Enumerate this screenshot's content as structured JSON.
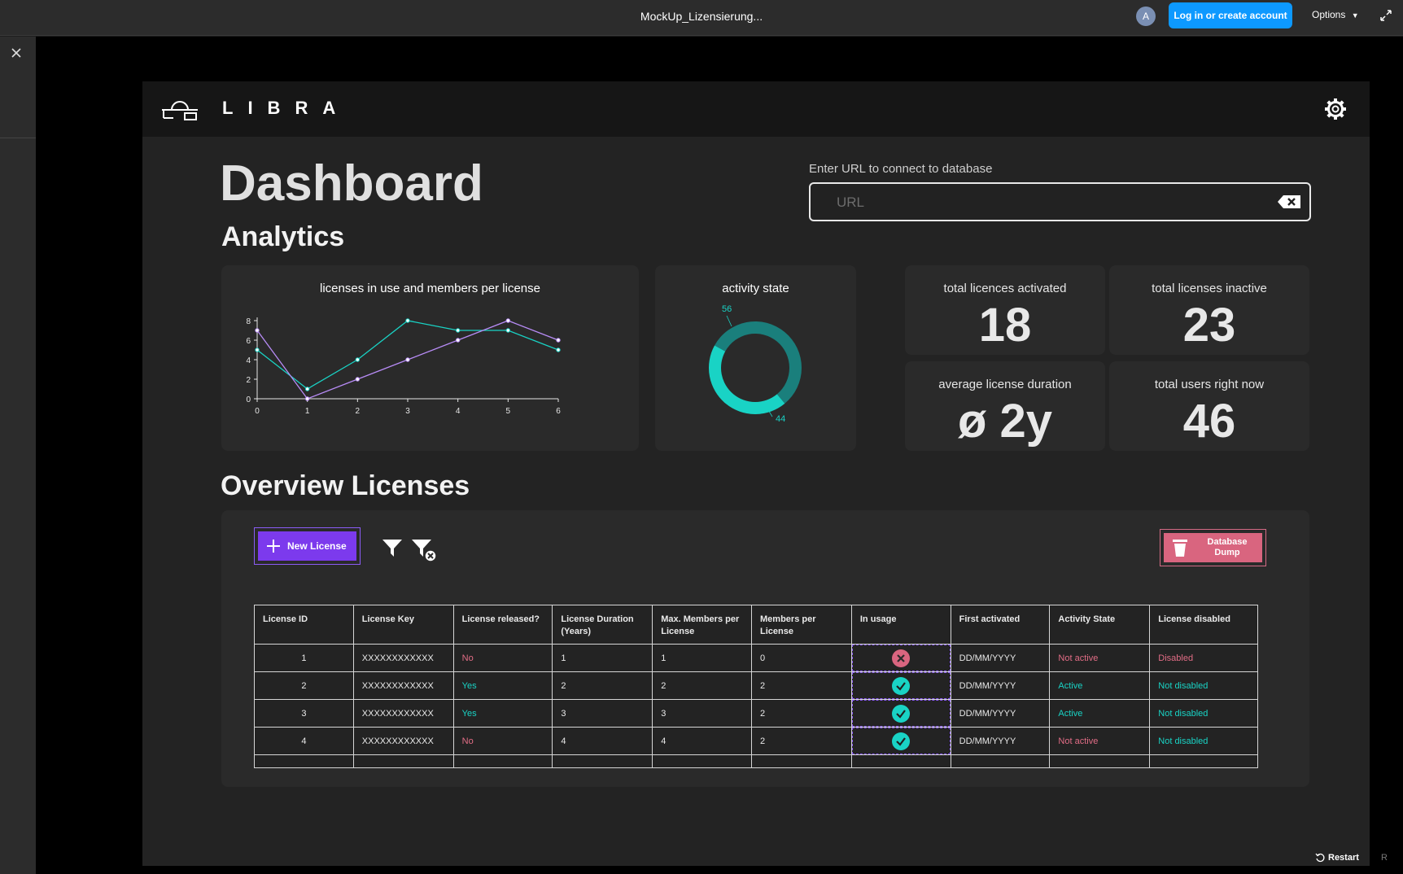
{
  "topbar": {
    "file_title": "MockUp_Lizensierung...",
    "avatar_initial": "A",
    "login_label": "Log in or create account",
    "options_label": "Options"
  },
  "app": {
    "logo_text": "LIBRA",
    "page_title": "Dashboard",
    "analytics_heading": "Analytics",
    "overview_heading": "Overview Licenses",
    "url": {
      "label": "Enter URL to connect to database",
      "placeholder": "URL",
      "value": ""
    }
  },
  "line_chart_title": "licenses in use and members per license",
  "donut_chart_title": "activity state",
  "stats": [
    {
      "label": "total licences activated",
      "value": "18"
    },
    {
      "label": "total licenses inactive",
      "value": "23"
    },
    {
      "label": "average license duration",
      "value": "ø 2y"
    },
    {
      "label": "total users right now",
      "value": "46"
    }
  ],
  "chart_data": [
    {
      "type": "line",
      "title": "licenses in use and members per license",
      "x": [
        0,
        1,
        2,
        3,
        4,
        5,
        6
      ],
      "xlim": [
        0,
        6
      ],
      "ylim": [
        0,
        8
      ],
      "yticks": [
        0,
        2,
        4,
        6,
        8
      ],
      "grid": false,
      "series": [
        {
          "values": [
            5,
            1,
            4,
            8,
            7,
            7,
            5
          ],
          "color": "#19d3c5"
        },
        {
          "values": [
            7,
            0,
            2,
            4,
            6,
            8,
            6
          ],
          "color": "#b88cf7"
        }
      ]
    },
    {
      "type": "pie",
      "title": "activity state",
      "donut": true,
      "categories": [
        "56",
        "44"
      ],
      "values": [
        56,
        44
      ],
      "colors": [
        "#1a7f7c",
        "#19d3c5"
      ]
    }
  ],
  "toolbar": {
    "new_license_label": "New License",
    "dump_label": "Database Dump"
  },
  "table": {
    "headers": [
      "License ID",
      "License Key",
      "License released?",
      "License Duration (Years)",
      "Max. Members per License",
      "Members per License",
      "In usage",
      "First activated",
      "Activity State",
      "License disabled"
    ],
    "rows": [
      {
        "id": "1",
        "key": "XXXXXXXXXXXX",
        "released": "No",
        "duration": "1",
        "max_members": "1",
        "members": "0",
        "in_usage": false,
        "first_activated": "DD/MM/YYYY",
        "activity": "Not active",
        "disabled": "Disabled"
      },
      {
        "id": "2",
        "key": "XXXXXXXXXXXX",
        "released": "Yes",
        "duration": "2",
        "max_members": "2",
        "members": "2",
        "in_usage": true,
        "first_activated": "DD/MM/YYYY",
        "activity": "Active",
        "disabled": "Not disabled"
      },
      {
        "id": "3",
        "key": "XXXXXXXXXXXX",
        "released": "Yes",
        "duration": "3",
        "max_members": "3",
        "members": "2",
        "in_usage": true,
        "first_activated": "DD/MM/YYYY",
        "activity": "Active",
        "disabled": "Not disabled"
      },
      {
        "id": "4",
        "key": "XXXXXXXXXXXX",
        "released": "No",
        "duration": "4",
        "max_members": "4",
        "members": "2",
        "in_usage": true,
        "first_activated": "DD/MM/YYYY",
        "activity": "Not active",
        "disabled": "Not disabled"
      }
    ]
  },
  "footer": {
    "restart_label": "Restart",
    "restart_key": "R"
  },
  "colors": {
    "accent": "#7c3aed",
    "danger": "#d9657f",
    "success": "#19d3c5",
    "link": "#0d99ff"
  }
}
